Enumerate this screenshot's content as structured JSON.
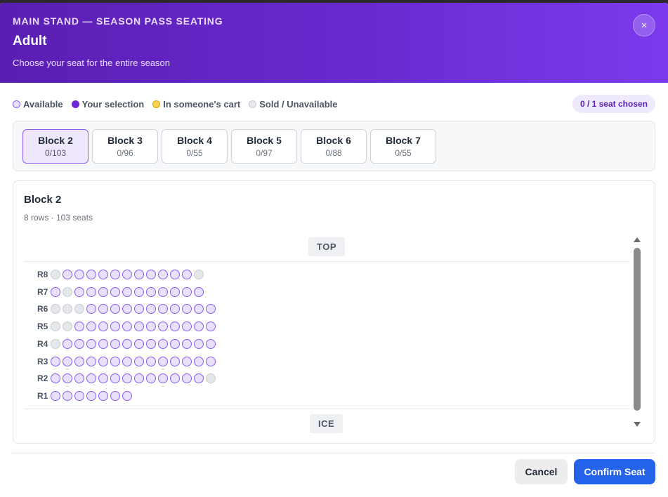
{
  "header": {
    "kicker": "MAIN STAND — SEASON PASS SEATING",
    "title": "Adult",
    "subtitle": "Choose your seat for the entire season",
    "close_label": "×"
  },
  "legend": {
    "available": "Available",
    "selected": "Your selection",
    "cart": "In someone's cart",
    "sold": "Sold / Unavailable"
  },
  "counter": "0 / 1 seat chosen",
  "blocks": [
    {
      "name": "Block 2",
      "count": "0/103",
      "active": true
    },
    {
      "name": "Block 3",
      "count": "0/96",
      "active": false
    },
    {
      "name": "Block 4",
      "count": "0/55",
      "active": false
    },
    {
      "name": "Block 5",
      "count": "0/97",
      "active": false
    },
    {
      "name": "Block 6",
      "count": "0/88",
      "active": false
    },
    {
      "name": "Block 7",
      "count": "0/55",
      "active": false
    }
  ],
  "panel": {
    "title": "Block 2",
    "meta": "8 rows · 103 seats",
    "top_label": "TOP",
    "bottom_label": "ICE",
    "rows": [
      {
        "label": "R8",
        "seats": "saaaaaaaaaaas"
      },
      {
        "label": "R7",
        "seats": "asaaaaaaaaaaa"
      },
      {
        "label": "R6",
        "seats": "sssaaaaaaaaaaa"
      },
      {
        "label": "R5",
        "seats": "ssaaaaaaaaaaaa"
      },
      {
        "label": "R4",
        "seats": "saaaaaaaaaaaaa"
      },
      {
        "label": "R3",
        "seats": "aaaaaaaaaaaaaa"
      },
      {
        "label": "R2",
        "seats": "aaaaaaaaaaaaas"
      },
      {
        "label": "R1",
        "seats": "aaaaaaa"
      }
    ]
  },
  "footer": {
    "cancel_label": "Cancel",
    "confirm_label": "Confirm Seat"
  },
  "colors": {
    "header_gradient_start": "#5a1eb2",
    "header_gradient_end": "#7c3aed",
    "available_fill": "#e8e0fd",
    "selected_fill": "#6d28d9",
    "cart_fill": "#fcd34d",
    "sold_fill": "#e5e7eb",
    "confirm_button": "#2563eb"
  }
}
